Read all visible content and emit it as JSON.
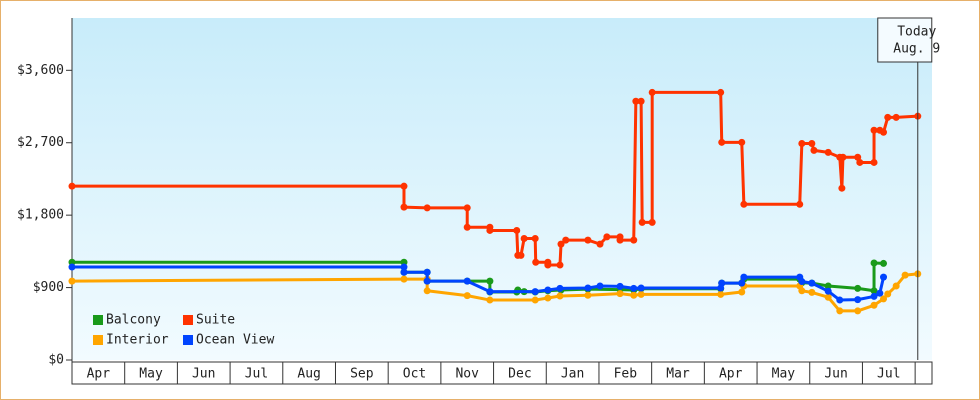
{
  "chart_data": {
    "type": "line",
    "categories": [
      "Apr",
      "May",
      "Jun",
      "Jul",
      "Aug",
      "Sep",
      "Oct",
      "Nov",
      "Dec",
      "Jan",
      "Feb",
      "Mar",
      "Apr",
      "May",
      "Jun",
      "Jul"
    ],
    "xlim": [
      0,
      16.32
    ],
    "ylim": [
      0,
      4250
    ],
    "yticks": [
      {
        "value": 0,
        "label": "$0"
      },
      {
        "value": 900,
        "label": "$900"
      },
      {
        "value": 1800,
        "label": "$1,800"
      },
      {
        "value": 2700,
        "label": "$2,700"
      },
      {
        "value": 3600,
        "label": "$3,600"
      }
    ],
    "annotation": {
      "text": "Today",
      "date": "Aug. 9",
      "x": 16.05
    },
    "series": [
      {
        "name": "Balcony",
        "color": "#1a9a1a",
        "x": [
          0,
          6.3,
          6.3,
          6.74,
          6.74,
          7.5,
          7.93,
          7.93,
          8.44,
          8.46,
          8.58,
          8.79,
          9.03,
          9.28,
          9.79,
          10.4,
          10.66,
          10.8,
          12.31,
          12.33,
          12.71,
          12.75,
          13.81,
          13.85,
          14.04,
          14.35,
          14.91,
          15.22,
          15.22,
          15.4
        ],
        "values": [
          1215,
          1215,
          1090,
          1090,
          980,
          980,
          980,
          845,
          845,
          870,
          850,
          845,
          860,
          870,
          880,
          875,
          870,
          885,
          885,
          955,
          955,
          1005,
          1005,
          960,
          955,
          920,
          890,
          860,
          1205,
          1200
        ]
      },
      {
        "name": "Suite",
        "color": "#ff3300",
        "x": [
          0,
          6.3,
          6.3,
          6.74,
          7.5,
          7.5,
          7.93,
          7.93,
          8.44,
          8.46,
          8.52,
          8.58,
          8.79,
          8.8,
          9.03,
          9.03,
          9.26,
          9.28,
          9.37,
          9.79,
          10.02,
          10.15,
          10.4,
          10.4,
          10.66,
          10.7,
          10.8,
          10.82,
          11.01,
          11.01,
          12.31,
          12.33,
          12.71,
          12.75,
          13.81,
          13.85,
          14.04,
          14.08,
          14.35,
          14.57,
          14.61,
          14.63,
          14.91,
          14.95,
          15.22,
          15.22,
          15.33,
          15.4,
          15.48,
          15.64,
          16.05
        ],
        "values": [
          2160,
          2160,
          1900,
          1890,
          1890,
          1650,
          1650,
          1610,
          1610,
          1300,
          1300,
          1510,
          1510,
          1215,
          1215,
          1180,
          1180,
          1440,
          1490,
          1490,
          1440,
          1530,
          1530,
          1490,
          1490,
          3215,
          3215,
          1710,
          1710,
          3325,
          3325,
          2705,
          2705,
          1935,
          1935,
          2690,
          2690,
          2605,
          2580,
          2520,
          2135,
          2520,
          2520,
          2455,
          2455,
          2855,
          2855,
          2830,
          3015,
          3015,
          3030
        ]
      },
      {
        "name": "Interior",
        "color": "#ffa500",
        "x": [
          0,
          6.3,
          6.74,
          6.74,
          7.5,
          7.93,
          8.79,
          9.03,
          9.26,
          9.79,
          10.4,
          10.66,
          10.8,
          12.31,
          12.71,
          12.75,
          13.81,
          13.85,
          14.04,
          14.35,
          14.57,
          14.91,
          15.22,
          15.4,
          15.48,
          15.64,
          15.81,
          16.05
        ],
        "values": [
          980,
          1005,
          1005,
          860,
          800,
          745,
          745,
          770,
          795,
          805,
          825,
          805,
          815,
          815,
          845,
          920,
          920,
          860,
          840,
          780,
          610,
          610,
          680,
          760,
          820,
          920,
          1055,
          1070
        ]
      },
      {
        "name": "Ocean View",
        "color": "#0044ff",
        "x": [
          0,
          6.3,
          6.3,
          6.74,
          6.74,
          7.5,
          7.93,
          8.79,
          9.03,
          9.26,
          9.79,
          10.02,
          10.4,
          10.66,
          10.8,
          12.31,
          12.33,
          12.71,
          12.75,
          13.81,
          13.85,
          14.04,
          14.35,
          14.57,
          14.91,
          15.22,
          15.33,
          15.4
        ],
        "values": [
          1155,
          1155,
          1090,
          1090,
          980,
          980,
          850,
          850,
          870,
          890,
          895,
          920,
          915,
          890,
          895,
          895,
          955,
          955,
          1030,
          1030,
          975,
          955,
          855,
          745,
          750,
          790,
          830,
          1030
        ]
      }
    ]
  }
}
